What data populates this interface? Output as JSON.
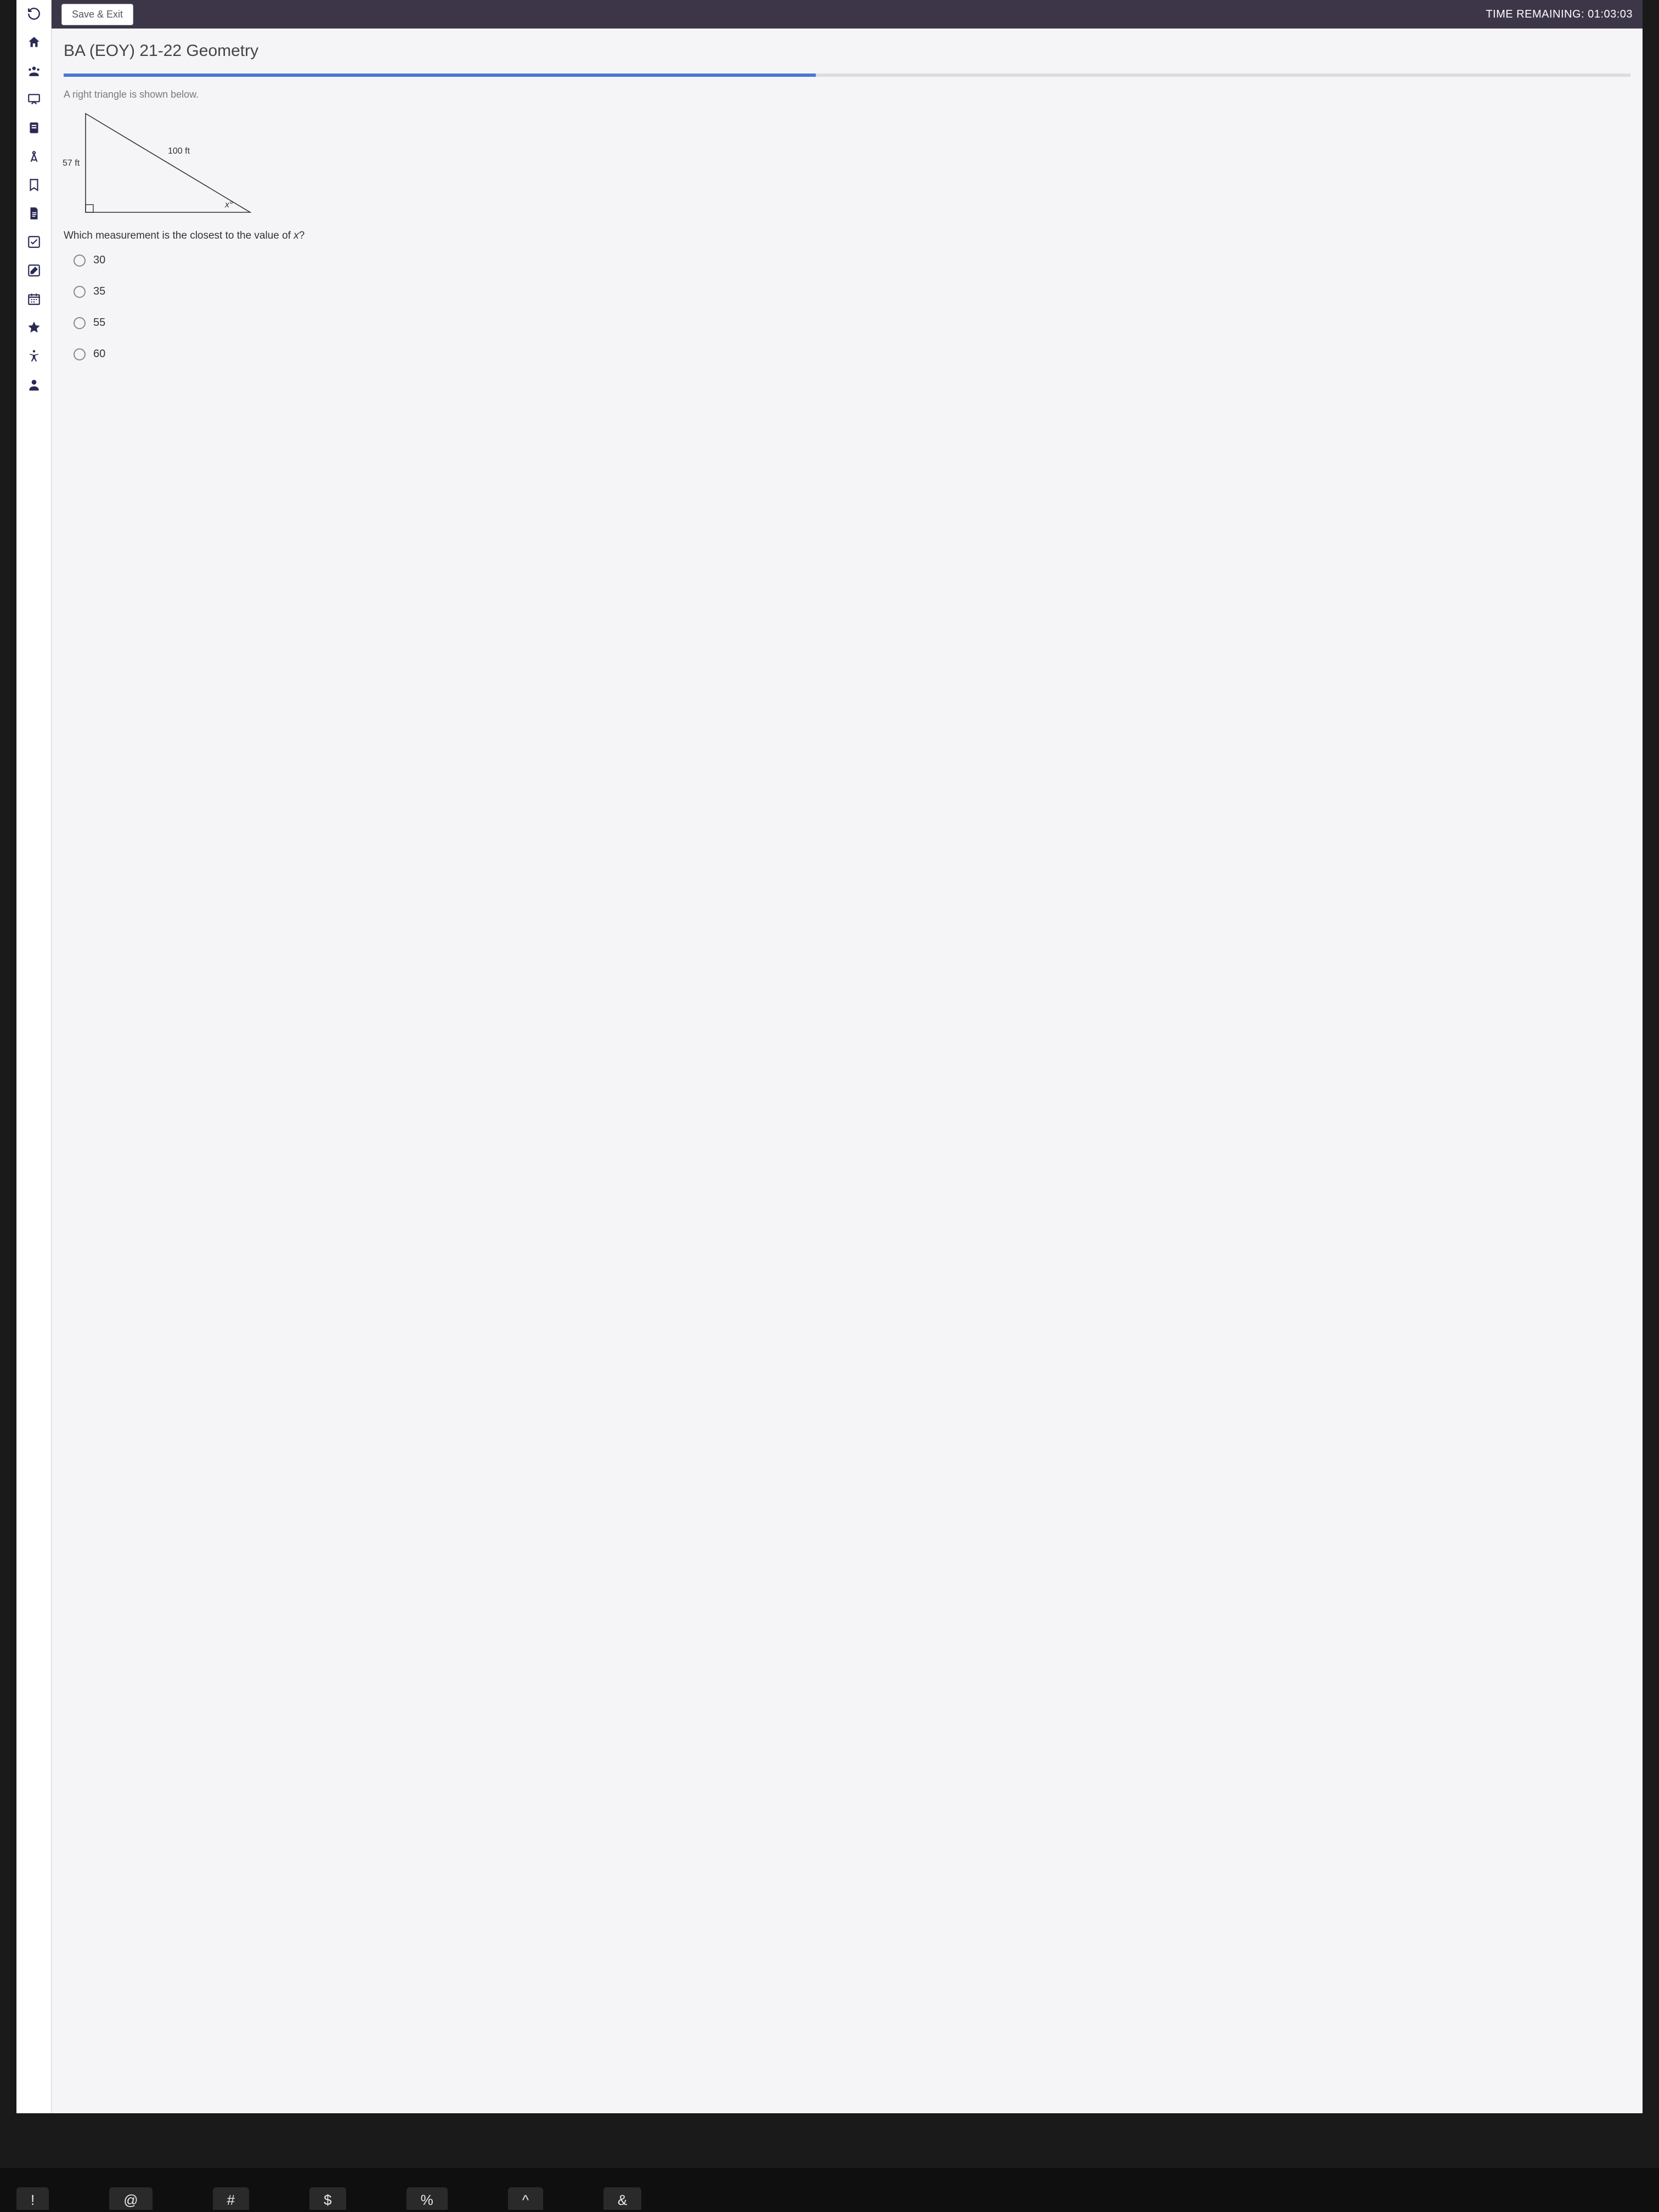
{
  "topbar": {
    "save_exit": "Save & Exit",
    "time_label": "TIME REMAINING:",
    "time_value": "01:03:03"
  },
  "title": "BA (EOY) 21-22 Geometry",
  "progress": {
    "fill_pct": 48,
    "fill_color": "#4a78d4",
    "track_color": "#dcdde2"
  },
  "question": {
    "prompt": "A right triangle is shown below.",
    "side_left": "57 ft",
    "hypotenuse": "100 ft",
    "angle_label": "x°",
    "text": "Which measurement is the closest to the value of x?"
  },
  "options": [
    "30",
    "35",
    "55",
    "60"
  ],
  "keyboard": [
    "!",
    "@",
    "#",
    "$",
    "%",
    "^",
    "&"
  ],
  "colors": {
    "topbar_bg": "#3d3648",
    "sidebar_icon": "#2a2a55",
    "body_bg": "#f5f5f7"
  }
}
